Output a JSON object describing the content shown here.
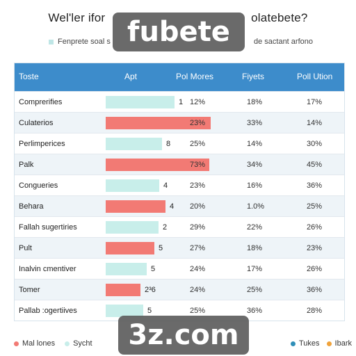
{
  "title_left": "Wel'ler ifor",
  "title_right": "olatebete?",
  "subtitle_left": "Fenprete soal s",
  "subtitle_right": "de sactant arfono",
  "watermark_top": "fubete",
  "watermark_bottom": "3z.com",
  "headers": [
    "Toste",
    "Apt",
    "Pol Mores",
    "Fiyets",
    "Poll Ution"
  ],
  "colors": {
    "header": "#3d8ccb",
    "bar_light": "#c8eeea",
    "bar_red": "#f27a74",
    "alt_row": "#eef4f8"
  },
  "rows": [
    {
      "name": "Comprerifies",
      "bar": 0.55,
      "color": "light",
      "num": "1",
      "p1": "12%",
      "p2": "18%",
      "p3": "17%"
    },
    {
      "name": "Culaterios",
      "bar": 0.84,
      "color": "red",
      "num": "",
      "p1": "23%",
      "p2": "33%",
      "p3": "14%"
    },
    {
      "name": "Perlimperices",
      "bar": 0.45,
      "color": "light",
      "num": "8",
      "p1": "25%",
      "p2": "14%",
      "p3": "30%"
    },
    {
      "name": "Palk",
      "bar": 0.83,
      "color": "red",
      "num": "",
      "p1": "73%",
      "p2": "34%",
      "p3": "45%"
    },
    {
      "name": "Congueries",
      "bar": 0.43,
      "color": "light",
      "num": "4",
      "p1": "23%",
      "p2": "16%",
      "p3": "36%"
    },
    {
      "name": "Behara",
      "bar": 0.48,
      "color": "red",
      "num": "4",
      "p1": "20%",
      "p2": "1.0%",
      "p3": "25%"
    },
    {
      "name": "Fallah sugertiries",
      "bar": 0.42,
      "color": "light",
      "num": "2",
      "p1": "29%",
      "p2": "22%",
      "p3": "26%"
    },
    {
      "name": "Pult",
      "bar": 0.39,
      "color": "red",
      "num": "5",
      "p1": "27%",
      "p2": "18%",
      "p3": "23%"
    },
    {
      "name": "Inalvin cmentiver",
      "bar": 0.33,
      "color": "light",
      "num": "5",
      "p1": "24%",
      "p2": "17%",
      "p3": "26%"
    },
    {
      "name": "Tomer",
      "bar": 0.28,
      "color": "red",
      "num": "2³6",
      "p1": "24%",
      "p2": "25%",
      "p3": "36%"
    },
    {
      "name": "Pallab :ogertiives",
      "bar": 0.3,
      "color": "light",
      "num": "5",
      "p1": "25%",
      "p2": "36%",
      "p3": "28%"
    }
  ],
  "legend": [
    {
      "label": "Mal lones",
      "color": "#f27a74"
    },
    {
      "label": "Sycht",
      "color": "#c8eeea"
    }
  ],
  "legend_right": [
    {
      "label": "Tukes",
      "color": "#2f8fb8"
    },
    {
      "label": "Ibark",
      "color": "#f0a23a"
    }
  ]
}
